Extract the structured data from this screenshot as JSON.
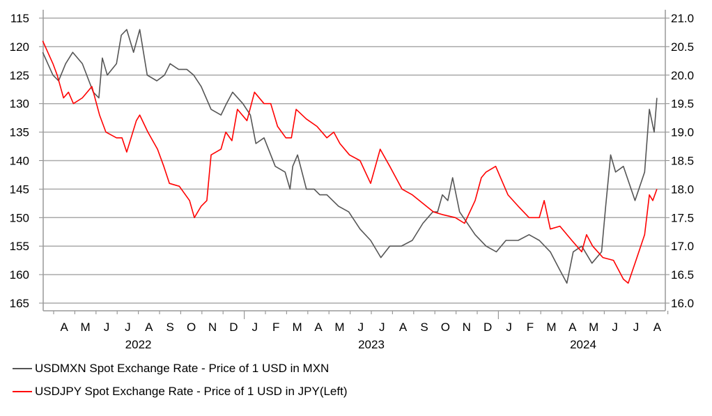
{
  "chart_data": {
    "type": "line",
    "x_months": [
      "A",
      "M",
      "J",
      "J",
      "A",
      "S",
      "O",
      "N",
      "D",
      "J",
      "F",
      "M",
      "A",
      "M",
      "J",
      "J",
      "A",
      "S",
      "O",
      "N",
      "D",
      "J",
      "F",
      "M",
      "A",
      "M",
      "J",
      "J",
      "A"
    ],
    "years": [
      {
        "label": "2022",
        "center_month": "2022-08"
      },
      {
        "label": "2023",
        "center_month": "2023-07"
      },
      {
        "label": "2024",
        "center_month": "2024-05"
      }
    ],
    "left_axis": {
      "range": [
        115,
        165
      ],
      "inverted": true,
      "ticks": [
        "115",
        "120",
        "125",
        "130",
        "135",
        "140",
        "145",
        "150",
        "155",
        "160",
        "165"
      ]
    },
    "right_axis": {
      "range": [
        16.0,
        21.0
      ],
      "ticks": [
        "21.0",
        "20.5",
        "20.0",
        "19.5",
        "19.0",
        "18.5",
        "18.0",
        "17.5",
        "17.0",
        "16.5",
        "16.0"
      ]
    },
    "grid": true,
    "legend_placement": "bottom-left",
    "series": [
      {
        "name": "USDMXN Spot Exchange Rate - Price of 1 USD in MXN",
        "axis": "right",
        "color": "#555555",
        "points": [
          [
            "2022-03-16",
            20.4
          ],
          [
            "2022-03-31",
            20.0
          ],
          [
            "2022-04-08",
            19.9
          ],
          [
            "2022-04-18",
            20.2
          ],
          [
            "2022-04-28",
            20.4
          ],
          [
            "2022-05-12",
            20.2
          ],
          [
            "2022-05-28",
            19.7
          ],
          [
            "2022-06-05",
            19.6
          ],
          [
            "2022-06-10",
            20.3
          ],
          [
            "2022-06-17",
            20.0
          ],
          [
            "2022-06-30",
            20.2
          ],
          [
            "2022-07-07",
            20.7
          ],
          [
            "2022-07-15",
            20.8
          ],
          [
            "2022-07-25",
            20.4
          ],
          [
            "2022-08-03",
            20.8
          ],
          [
            "2022-08-14",
            20.0
          ],
          [
            "2022-08-28",
            19.9
          ],
          [
            "2022-09-08",
            20.0
          ],
          [
            "2022-09-16",
            20.2
          ],
          [
            "2022-09-28",
            20.1
          ],
          [
            "2022-10-10",
            20.1
          ],
          [
            "2022-10-20",
            20.0
          ],
          [
            "2022-10-31",
            19.8
          ],
          [
            "2022-11-14",
            19.4
          ],
          [
            "2022-11-28",
            19.3
          ],
          [
            "2022-12-06",
            19.5
          ],
          [
            "2022-12-15",
            19.7
          ],
          [
            "2022-12-30",
            19.5
          ],
          [
            "2023-01-10",
            19.3
          ],
          [
            "2023-01-18",
            18.8
          ],
          [
            "2023-01-30",
            18.9
          ],
          [
            "2023-02-14",
            18.4
          ],
          [
            "2023-02-27",
            18.3
          ],
          [
            "2023-03-06",
            18.0
          ],
          [
            "2023-03-10",
            18.4
          ],
          [
            "2023-03-17",
            18.6
          ],
          [
            "2023-03-30",
            18.0
          ],
          [
            "2023-04-10",
            18.0
          ],
          [
            "2023-04-18",
            17.9
          ],
          [
            "2023-04-28",
            17.9
          ],
          [
            "2023-05-15",
            17.7
          ],
          [
            "2023-05-30",
            17.6
          ],
          [
            "2023-06-15",
            17.3
          ],
          [
            "2023-06-30",
            17.1
          ],
          [
            "2023-07-15",
            16.8
          ],
          [
            "2023-07-28",
            17.0
          ],
          [
            "2023-08-14",
            17.0
          ],
          [
            "2023-08-30",
            17.1
          ],
          [
            "2023-09-14",
            17.4
          ],
          [
            "2023-09-28",
            17.6
          ],
          [
            "2023-10-05",
            17.6
          ],
          [
            "2023-10-12",
            17.9
          ],
          [
            "2023-10-20",
            17.8
          ],
          [
            "2023-10-27",
            18.2
          ],
          [
            "2023-11-06",
            17.6
          ],
          [
            "2023-11-28",
            17.2
          ],
          [
            "2023-12-14",
            17.0
          ],
          [
            "2023-12-29",
            16.9
          ],
          [
            "2024-01-12",
            17.1
          ],
          [
            "2024-01-30",
            17.1
          ],
          [
            "2024-02-14",
            17.2
          ],
          [
            "2024-02-28",
            17.1
          ],
          [
            "2024-03-15",
            16.9
          ],
          [
            "2024-03-28",
            16.6
          ],
          [
            "2024-04-08",
            16.35
          ],
          [
            "2024-04-17",
            16.9
          ],
          [
            "2024-04-29",
            17.0
          ],
          [
            "2024-05-14",
            16.7
          ],
          [
            "2024-05-28",
            16.9
          ],
          [
            "2024-06-03",
            17.7
          ],
          [
            "2024-06-10",
            18.6
          ],
          [
            "2024-06-17",
            18.3
          ],
          [
            "2024-06-28",
            18.4
          ],
          [
            "2024-07-15",
            17.8
          ],
          [
            "2024-07-29",
            18.3
          ],
          [
            "2024-08-05",
            19.4
          ],
          [
            "2024-08-12",
            19.0
          ],
          [
            "2024-08-16",
            19.6
          ]
        ]
      },
      {
        "name": "USDJPY Spot Exchange Rate - Price of 1 USD in JPY(Left)",
        "axis": "left",
        "color": "#ff0000",
        "points": [
          [
            "2022-03-16",
            119
          ],
          [
            "2022-03-31",
            123
          ],
          [
            "2022-04-06",
            125
          ],
          [
            "2022-04-15",
            129
          ],
          [
            "2022-04-22",
            128
          ],
          [
            "2022-04-29",
            130
          ],
          [
            "2022-05-12",
            129
          ],
          [
            "2022-05-26",
            127
          ],
          [
            "2022-06-06",
            132
          ],
          [
            "2022-06-15",
            135
          ],
          [
            "2022-06-30",
            136
          ],
          [
            "2022-07-08",
            136
          ],
          [
            "2022-07-15",
            138.5
          ],
          [
            "2022-07-29",
            133
          ],
          [
            "2022-08-03",
            132
          ],
          [
            "2022-08-15",
            135
          ],
          [
            "2022-08-29",
            138
          ],
          [
            "2022-09-07",
            141
          ],
          [
            "2022-09-15",
            144
          ],
          [
            "2022-09-29",
            144.5
          ],
          [
            "2022-10-14",
            147
          ],
          [
            "2022-10-21",
            150
          ],
          [
            "2022-10-31",
            148
          ],
          [
            "2022-11-08",
            147
          ],
          [
            "2022-11-14",
            139
          ],
          [
            "2022-11-28",
            138
          ],
          [
            "2022-12-05",
            135
          ],
          [
            "2022-12-14",
            136.5
          ],
          [
            "2022-12-22",
            131
          ],
          [
            "2023-01-05",
            133
          ],
          [
            "2023-01-16",
            128
          ],
          [
            "2023-01-30",
            130
          ],
          [
            "2023-02-08",
            130
          ],
          [
            "2023-02-17",
            134
          ],
          [
            "2023-02-28",
            136
          ],
          [
            "2023-03-08",
            136
          ],
          [
            "2023-03-15",
            131
          ],
          [
            "2023-03-30",
            132.7
          ],
          [
            "2023-04-14",
            134
          ],
          [
            "2023-04-28",
            136
          ],
          [
            "2023-05-08",
            135
          ],
          [
            "2023-05-17",
            137
          ],
          [
            "2023-05-31",
            139
          ],
          [
            "2023-06-15",
            140
          ],
          [
            "2023-06-30",
            144
          ],
          [
            "2023-07-14",
            138
          ],
          [
            "2023-07-28",
            141
          ],
          [
            "2023-08-15",
            145
          ],
          [
            "2023-08-30",
            146
          ],
          [
            "2023-09-14",
            147.5
          ],
          [
            "2023-09-29",
            149
          ],
          [
            "2023-10-13",
            149.5
          ],
          [
            "2023-10-31",
            150
          ],
          [
            "2023-11-13",
            151
          ],
          [
            "2023-11-28",
            147
          ],
          [
            "2023-12-07",
            143
          ],
          [
            "2023-12-14",
            142
          ],
          [
            "2023-12-28",
            141
          ],
          [
            "2024-01-15",
            146
          ],
          [
            "2024-01-30",
            148
          ],
          [
            "2024-02-14",
            150
          ],
          [
            "2024-02-28",
            150
          ],
          [
            "2024-03-06",
            147
          ],
          [
            "2024-03-15",
            152
          ],
          [
            "2024-03-29",
            151.5
          ],
          [
            "2024-04-15",
            154
          ],
          [
            "2024-04-29",
            156
          ],
          [
            "2024-05-06",
            153
          ],
          [
            "2024-05-15",
            155
          ],
          [
            "2024-05-30",
            157
          ],
          [
            "2024-06-14",
            157.5
          ],
          [
            "2024-06-28",
            160.8
          ],
          [
            "2024-07-05",
            161.5
          ],
          [
            "2024-07-15",
            158
          ],
          [
            "2024-07-29",
            153
          ],
          [
            "2024-08-05",
            146
          ],
          [
            "2024-08-10",
            147
          ],
          [
            "2024-08-16",
            145
          ]
        ]
      }
    ]
  }
}
